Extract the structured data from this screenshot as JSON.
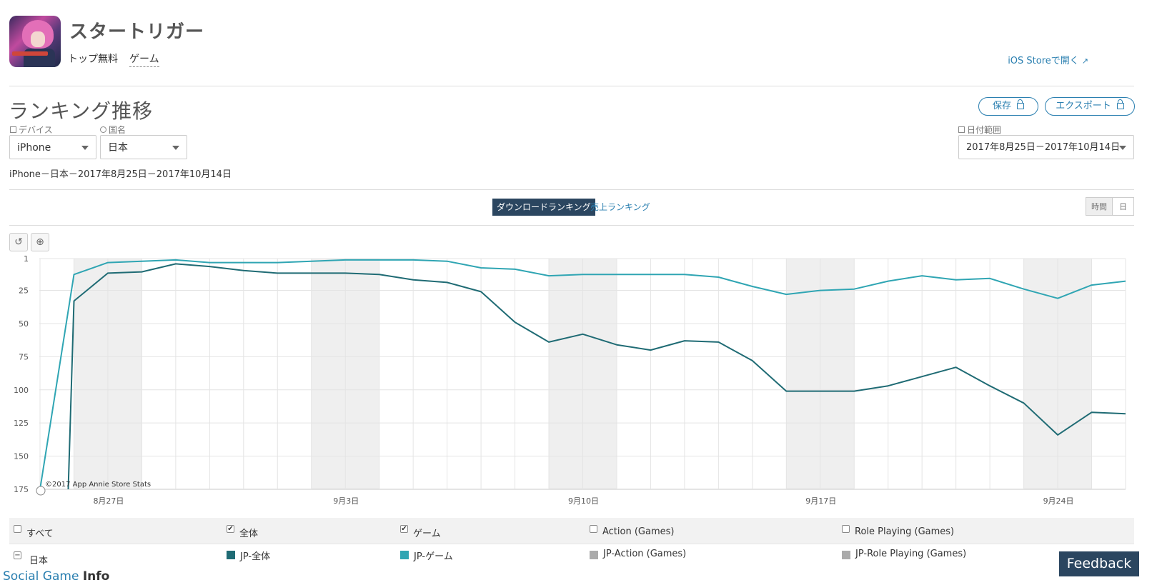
{
  "app": {
    "title": "スタートリガー",
    "price_label": "トップ無料",
    "category_label": "ゲーム",
    "store_link": "iOS Storeで開く",
    "external_icon": "external-link-icon"
  },
  "page": {
    "heading": "ランキング推移",
    "save_label": "保存",
    "export_label": "エクスポート",
    "subtitle": "iPhone－日本－2017年8月25日－2017年10月14日"
  },
  "filters": {
    "device_label": "デバイス",
    "device_value": "iPhone",
    "country_label": "国名",
    "country_value": "日本",
    "date_label": "日付範囲",
    "date_value": "2017年8月25日－2017年10月14日"
  },
  "tabs": {
    "download_ranking": "ダウンロードランキング",
    "sales_ranking": "売上ランキング"
  },
  "granularity": {
    "hour": "時間",
    "day": "日"
  },
  "toolbar": {
    "reset_icon": "reset-icon",
    "zoom_icon": "zoom-icon"
  },
  "chart_data": {
    "type": "line",
    "xlabel": "",
    "ylabel": "",
    "y_reversed": true,
    "ylim": [
      1,
      175
    ],
    "y_ticks": [
      1,
      25,
      50,
      75,
      100,
      125,
      150,
      175
    ],
    "x_tick_labels": [
      "8月27日",
      "9月3日",
      "9月10日",
      "9月17日",
      "9月24日"
    ],
    "x_tick_indices": [
      2,
      9,
      16,
      23,
      30
    ],
    "weekend_band_starts": [
      1,
      8,
      15,
      22,
      29
    ],
    "num_days": 33,
    "watermark": "©2017 App Annie Store Stats",
    "series": [
      {
        "name": "JP-全体",
        "color": "#1f6b74",
        "values": [
          null,
          33,
          12,
          11,
          5,
          7,
          10,
          12,
          12,
          12,
          13,
          17,
          19,
          26,
          49,
          64,
          58,
          66,
          70,
          63,
          64,
          78,
          101,
          101,
          101,
          97,
          90,
          83,
          97,
          110,
          134,
          117,
          118
        ]
      },
      {
        "name": "JP-ゲーム",
        "color": "#2fa5b3",
        "values": [
          175,
          13,
          4,
          3,
          2,
          4,
          4,
          4,
          3,
          2,
          2,
          2,
          3,
          8,
          9,
          14,
          13,
          13,
          13,
          13,
          15,
          22,
          28,
          25,
          24,
          18,
          14,
          17,
          16,
          24,
          31,
          21,
          18
        ]
      }
    ]
  },
  "legend": {
    "all_label": "すべて",
    "overall_label": "全体",
    "game_label": "ゲーム",
    "action_label": "Action (Games)",
    "rpg_label": "Role Playing (Games)",
    "country_row_label": "日本",
    "overall_series": "JP-全体",
    "game_series": "JP-ゲーム",
    "action_series": "JP-Action (Games)",
    "rpg_series": "JP-Role Playing (Games)",
    "overall_checked": true,
    "game_checked": true,
    "colors": {
      "overall": "#1f6b74",
      "game": "#2fa5b3",
      "inactive": "#aaaaaa"
    }
  },
  "feedback_label": "Feedback",
  "brand": {
    "part1": "Social Game ",
    "part2": "Info"
  }
}
